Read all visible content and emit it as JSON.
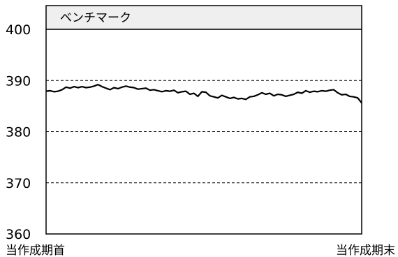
{
  "chart_data": {
    "type": "line",
    "title": "ベンチマーク",
    "xlabel": "",
    "ylabel": "",
    "x_labels": [
      "当作成期首",
      "当作成期末"
    ],
    "ylim": [
      360,
      400
    ],
    "yticks": [
      360,
      370,
      380,
      390,
      400
    ],
    "grid": "horizontal-dashed",
    "series": [
      {
        "values": [
          387.9,
          388.0,
          387.8,
          387.9,
          388.2,
          388.7,
          388.5,
          388.8,
          388.6,
          388.8,
          388.6,
          388.7,
          388.9,
          389.2,
          388.8,
          388.5,
          388.2,
          388.6,
          388.4,
          388.7,
          388.9,
          388.7,
          388.6,
          388.3,
          388.4,
          388.5,
          388.1,
          388.2,
          388.0,
          387.8,
          388.0,
          387.9,
          388.1,
          387.6,
          387.8,
          387.9,
          387.3,
          387.5,
          386.9,
          387.8,
          387.7,
          387.0,
          386.8,
          386.6,
          387.1,
          386.8,
          386.5,
          386.7,
          386.4,
          386.5,
          386.3,
          386.8,
          386.9,
          387.2,
          387.6,
          387.3,
          387.5,
          387.0,
          387.3,
          387.2,
          386.9,
          387.1,
          387.3,
          387.7,
          387.5,
          388.0,
          387.7,
          387.9,
          387.8,
          388.0,
          387.9,
          388.1,
          388.2,
          387.6,
          387.2,
          387.3,
          386.9,
          386.8,
          386.6,
          385.6
        ]
      }
    ]
  }
}
